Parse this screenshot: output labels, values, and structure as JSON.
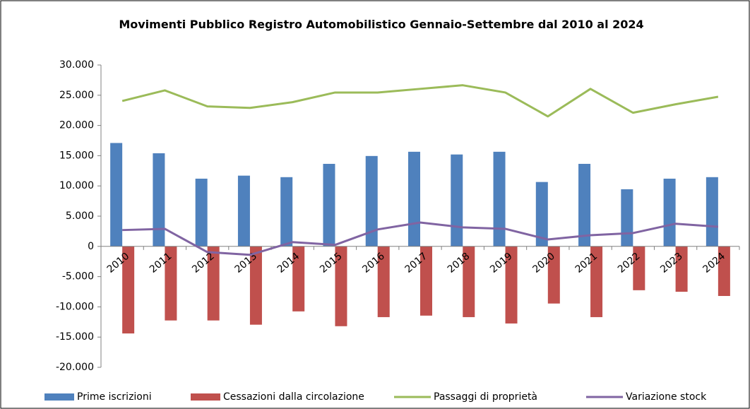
{
  "chart_data": {
    "type": "bar_line",
    "title": "Movimenti Pubblico Registro Automobilistico Gennaio-Settembre dal 2010 al 2024",
    "categories": [
      "2010",
      "2011",
      "2012",
      "2013",
      "2014",
      "2015",
      "2016",
      "2017",
      "2018",
      "2019",
      "2020",
      "2021",
      "2022",
      "2023",
      "2024"
    ],
    "series": [
      {
        "name": "Prime iscrizioni",
        "kind": "bar",
        "color": "#4f81bd",
        "values": [
          17100,
          15400,
          11200,
          11700,
          11450,
          13650,
          14950,
          15650,
          15200,
          15650,
          10650,
          13650,
          9450,
          11200,
          11450
        ]
      },
      {
        "name": "Cessazioni dalla circolazione",
        "kind": "bar",
        "color": "#c0504d",
        "values": [
          -14400,
          -12250,
          -12250,
          -12950,
          -10750,
          -13200,
          -11700,
          -11450,
          -11700,
          -12750,
          -9450,
          -11700,
          -7250,
          -7500,
          -8200
        ]
      },
      {
        "name": "Passaggi di proprietà",
        "kind": "line",
        "color": "#9bbb59",
        "values": [
          24050,
          25800,
          23150,
          22900,
          23850,
          25450,
          25450,
          26050,
          26650,
          25450,
          21500,
          26050,
          22100,
          23500,
          24750
        ]
      },
      {
        "name": "Variazione stock",
        "kind": "line",
        "color": "#8064a2",
        "values": [
          2700,
          2900,
          -950,
          -1400,
          700,
          250,
          2800,
          3950,
          3150,
          2900,
          1150,
          1850,
          2200,
          3750,
          3250
        ]
      }
    ],
    "ylim": [
      -20000,
      30000
    ],
    "yticks": [
      {
        "value": -20000,
        "label": "-20.000"
      },
      {
        "value": -15000,
        "label": "-15.000"
      },
      {
        "value": -10000,
        "label": "-10.000"
      },
      {
        "value": -5000,
        "label": "-5.000"
      },
      0,
      {
        "value": 5000,
        "label": "5.000"
      },
      {
        "value": 10000,
        "label": "10.000"
      },
      {
        "value": 15000,
        "label": "15.000"
      },
      {
        "value": 20000,
        "label": "20.000"
      },
      {
        "value": 25000,
        "label": "25.000"
      },
      {
        "value": 30000,
        "label": "30.000"
      }
    ],
    "grid": false,
    "legend": "bottom"
  }
}
